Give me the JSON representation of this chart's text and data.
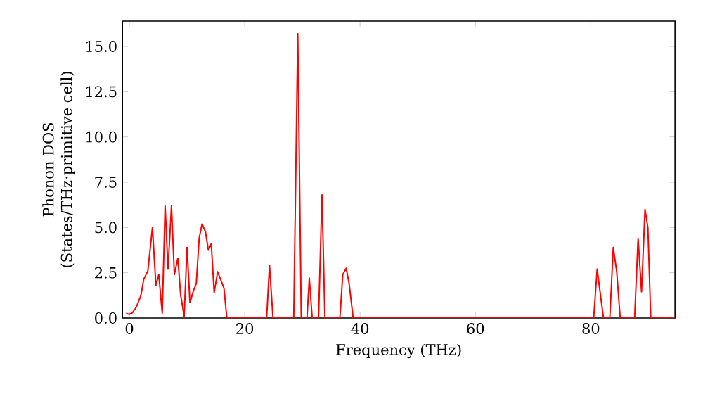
{
  "chart_data": {
    "type": "line",
    "xlabel": "Frequency (THz)",
    "ylabel": "Phonon DOS\n(States/THz·primitive cell)",
    "x": [
      -0.55,
      0,
      0.55,
      1.2,
      2,
      2.5,
      3.2,
      4,
      4.6,
      5.1,
      5.7,
      6.2,
      6.7,
      7.3,
      7.8,
      8.4,
      8.9,
      9.5,
      10,
      10.5,
      11.1,
      11.6,
      12.1,
      12.6,
      13.2,
      13.7,
      14.2,
      14.7,
      15.3,
      15.8,
      16.4,
      16.9,
      23.8,
      24.3,
      24.9,
      28.5,
      29.2,
      29.8,
      30.8,
      31.2,
      31.7,
      32.8,
      33.4,
      33.9,
      36.5,
      37,
      37.6,
      38.1,
      38.8,
      80.5,
      81.1,
      82.2,
      83.3,
      83.9,
      84.5,
      85.1,
      87.6,
      88.2,
      88.8,
      89.4,
      89.9,
      90.4,
      94.6
    ],
    "series": [
      {
        "color": "#ff0000",
        "values": [
          0.26,
          0.2,
          0.3,
          0.6,
          1.25,
          2.15,
          2.6,
          5.0,
          1.8,
          2.4,
          0.26,
          6.2,
          2.7,
          6.2,
          2.4,
          3.3,
          1.25,
          0.1,
          3.9,
          0.85,
          1.5,
          1.9,
          4.4,
          5.2,
          4.75,
          3.75,
          4.1,
          1.4,
          2.55,
          2.15,
          1.65,
          0,
          0,
          2.9,
          0,
          0,
          15.7,
          0,
          0,
          2.2,
          0,
          0,
          6.8,
          0,
          0,
          2.4,
          2.75,
          1.9,
          0,
          0,
          2.7,
          0,
          0,
          3.9,
          2.55,
          0,
          0,
          4.4,
          1.45,
          6.0,
          5.0,
          0,
          0
        ]
      }
    ],
    "xlim": [
      -1.2,
      94.6
    ],
    "ylim": [
      0,
      16.4
    ],
    "xticks": [
      0,
      20,
      40,
      60,
      80
    ],
    "yticks": [
      {
        "value": 0,
        "label": "0.0"
      },
      {
        "value": 2.5,
        "label": "2.5"
      },
      {
        "value": 5,
        "label": "5.0"
      },
      {
        "value": 7.5,
        "label": "7.5"
      },
      {
        "value": 10,
        "label": "10.0"
      },
      {
        "value": 12.5,
        "label": "12.5"
      },
      {
        "value": 15,
        "label": "15.0"
      }
    ],
    "marker": "none",
    "line_style": "solid"
  }
}
